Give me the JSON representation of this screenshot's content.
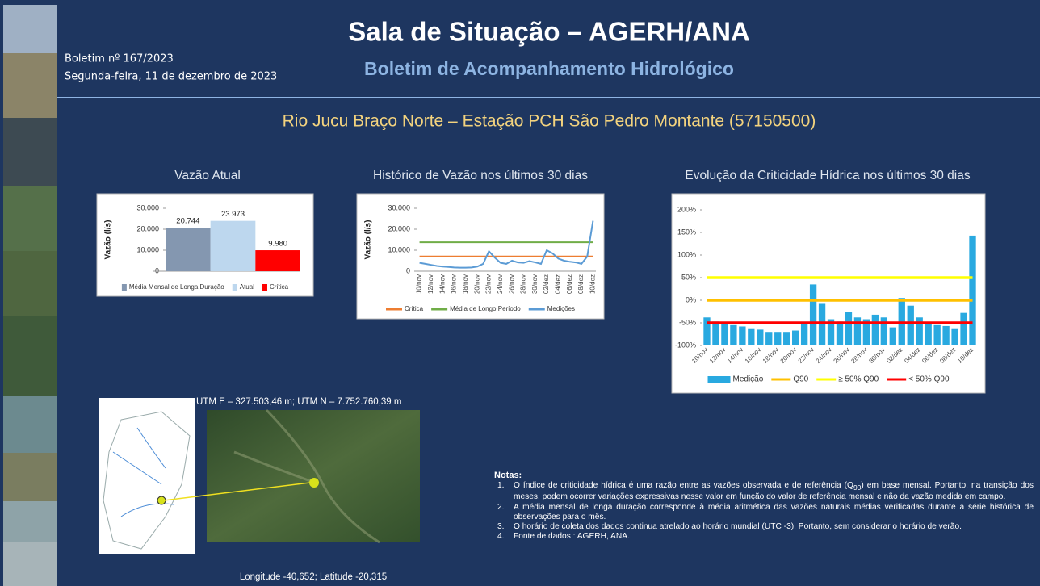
{
  "header": {
    "bulletin": "Boletim nº 167/2023",
    "date": "Segunda-feira, 11 de dezembro de 2023",
    "title": "Sala de Situação – AGERH/ANA",
    "subtitle": "Boletim de Acompanhamento Hidrológico",
    "station": "Rio Jucu Braço Norte – Estação  PCH São Pedro Montante (57150500)"
  },
  "map": {
    "utm": "UTM E – 327.503,46 m; UTM N – 7.752.760,39  m",
    "coordinates": "Longitude -40,652; Latitude -20,315"
  },
  "notes": {
    "title": "Notas:",
    "items": [
      {
        "number": "1.",
        "text": "O índice de criticidade hídrica é uma razão entre as vazões observada e de referência (Q",
        "subscript": "90",
        "text_after": ") em base mensal. Portanto, na transição dos meses, podem ocorrer variações expressivas nesse valor  em função do valor de referência mensal e não da vazão medida em campo."
      },
      {
        "number": "2.",
        "text": "A média mensal de longa duração corresponde à média aritmética das vazões naturais médias verificadas durante a série histórica de observações para o mês."
      },
      {
        "number": "3.",
        "text": "O horário de coleta dos dados continua atrelado ao horário mundial (UTC -3). Portanto, sem considerar o horário de verão."
      },
      {
        "number": "4.",
        "text": "Fonte de dados : AGERH, ANA."
      }
    ]
  },
  "chart_data": [
    {
      "type": "bar",
      "title": "Vazão Atual",
      "y_label": "Vazão (l/s)",
      "categories": [
        "Média Mensal de Longa Duração",
        "Atual",
        "Crítica"
      ],
      "values": [
        20744,
        23973,
        9980
      ],
      "value_labels": [
        "20.744",
        "23.973",
        "9.980"
      ],
      "colors": [
        "#8497b0",
        "#bdd7ee",
        "#ff0000"
      ],
      "ylim": [
        0,
        30000
      ],
      "yticks": [
        0,
        {
          "value": 10000,
          "label": "10.000"
        },
        {
          "value": 20000,
          "label": "20.000"
        },
        {
          "value": 30000,
          "label": "30.000"
        }
      ],
      "grid": false
    },
    {
      "type": "line",
      "title": "Histórico de Vazão nos últimos 30 dias",
      "y_label": "Vazão (l/s)",
      "categories": [
        "10/nov",
        null,
        "12/nov",
        null,
        "14/nov",
        null,
        "16/nov",
        null,
        "18/nov",
        null,
        "20/nov",
        null,
        "22/nov",
        null,
        "24/nov",
        null,
        "26/nov",
        null,
        "28/nov",
        null,
        "30/nov",
        null,
        "02/dez",
        null,
        "04/dez",
        null,
        "06/dez",
        null,
        "08/dez",
        null,
        "10/dez"
      ],
      "series": [
        {
          "name": "Crítica",
          "color": "#ed7d31",
          "values": [
            7000,
            7000,
            7000,
            7000,
            7000,
            7000,
            7000,
            7000,
            7000,
            7000,
            7000,
            7000,
            7000,
            7000,
            7000,
            7000,
            7000,
            7000,
            7000,
            7000,
            7000,
            7000,
            7000,
            7000,
            7000,
            7000,
            7000,
            7000,
            7000,
            7000,
            7000
          ]
        },
        {
          "name": "Média de Longo Período",
          "color": "#70ad47",
          "values": [
            13800,
            13800,
            13800,
            13800,
            13800,
            13800,
            13800,
            13800,
            13800,
            13800,
            13800,
            13800,
            13800,
            13800,
            13800,
            13800,
            13800,
            13800,
            13800,
            13800,
            13800,
            13800,
            13800,
            13800,
            13800,
            13800,
            13800,
            13800,
            13800,
            13800,
            13800
          ]
        },
        {
          "name": "Medições",
          "color": "#5b9bd5",
          "values": [
            4000,
            3500,
            3000,
            2500,
            2200,
            2000,
            1800,
            1700,
            1700,
            1800,
            2200,
            3500,
            9500,
            6500,
            4000,
            3500,
            5000,
            4200,
            4000,
            4800,
            4200,
            3500,
            10000,
            8500,
            6000,
            5000,
            4500,
            4200,
            3500,
            7000,
            24000
          ]
        }
      ],
      "ylim": [
        0,
        30000
      ],
      "yticks": [
        0,
        {
          "value": 10000,
          "label": "10.000"
        },
        {
          "value": 20000,
          "label": "20.000"
        },
        {
          "value": 30000,
          "label": "30.000"
        }
      ],
      "grid": false
    },
    {
      "type": "combo",
      "title": "Evolução da Criticidade Hídrica nos últimos 30 dias",
      "categories": [
        "10/nov",
        null,
        "12/nov",
        null,
        "14/nov",
        null,
        "16/nov",
        null,
        "18/nov",
        null,
        "20/nov",
        null,
        "22/nov",
        null,
        "24/nov",
        null,
        "26/nov",
        null,
        "28/nov",
        null,
        "30/nov",
        null,
        "02/dez",
        null,
        "04/dez",
        null,
        "06/dez",
        null,
        "08/dez",
        null,
        "10/dez"
      ],
      "series": [
        {
          "name": "Medição",
          "type": "bar",
          "color": "#29a9e0",
          "values": [
            -38,
            -47,
            -50,
            -55,
            -58,
            -62,
            -65,
            -70,
            -70,
            -70,
            -67,
            -52,
            35,
            -8,
            -42,
            -47,
            -25,
            -38,
            -42,
            -32,
            -38,
            -60,
            5,
            -12,
            -38,
            -50,
            -55,
            -57,
            -62,
            -28,
            143
          ]
        },
        {
          "name": "Q90",
          "type": "line",
          "color": "#ffc000",
          "values": [
            0,
            0,
            0,
            0,
            0,
            0,
            0,
            0,
            0,
            0,
            0,
            0,
            0,
            0,
            0,
            0,
            0,
            0,
            0,
            0,
            0,
            0,
            0,
            0,
            0,
            0,
            0,
            0,
            0,
            0,
            0
          ]
        },
        {
          "name": "≥ 50% Q90",
          "type": "line",
          "color": "#ffff00",
          "values": [
            50,
            50,
            50,
            50,
            50,
            50,
            50,
            50,
            50,
            50,
            50,
            50,
            50,
            50,
            50,
            50,
            50,
            50,
            50,
            50,
            50,
            50,
            50,
            50,
            50,
            50,
            50,
            50,
            50,
            50,
            50
          ]
        },
        {
          "name": "< 50% Q90",
          "type": "line",
          "color": "#ff0000",
          "values": [
            -50,
            -50,
            -50,
            -50,
            -50,
            -50,
            -50,
            -50,
            -50,
            -50,
            -50,
            -50,
            -50,
            -50,
            -50,
            -50,
            -50,
            -50,
            -50,
            -50,
            -50,
            -50,
            -50,
            -50,
            -50,
            -50,
            -50,
            -50,
            -50,
            -50,
            -50
          ]
        }
      ],
      "ylim": [
        -100,
        200
      ],
      "yticks": [
        {
          "value": -100,
          "label": "-100%"
        },
        {
          "value": -50,
          "label": "-50%"
        },
        {
          "value": 0,
          "label": "0%"
        },
        {
          "value": 50,
          "label": "50%"
        },
        {
          "value": 100,
          "label": "100%"
        },
        {
          "value": 150,
          "label": "150%"
        },
        {
          "value": 200,
          "label": "200%"
        }
      ],
      "grid": false
    }
  ]
}
